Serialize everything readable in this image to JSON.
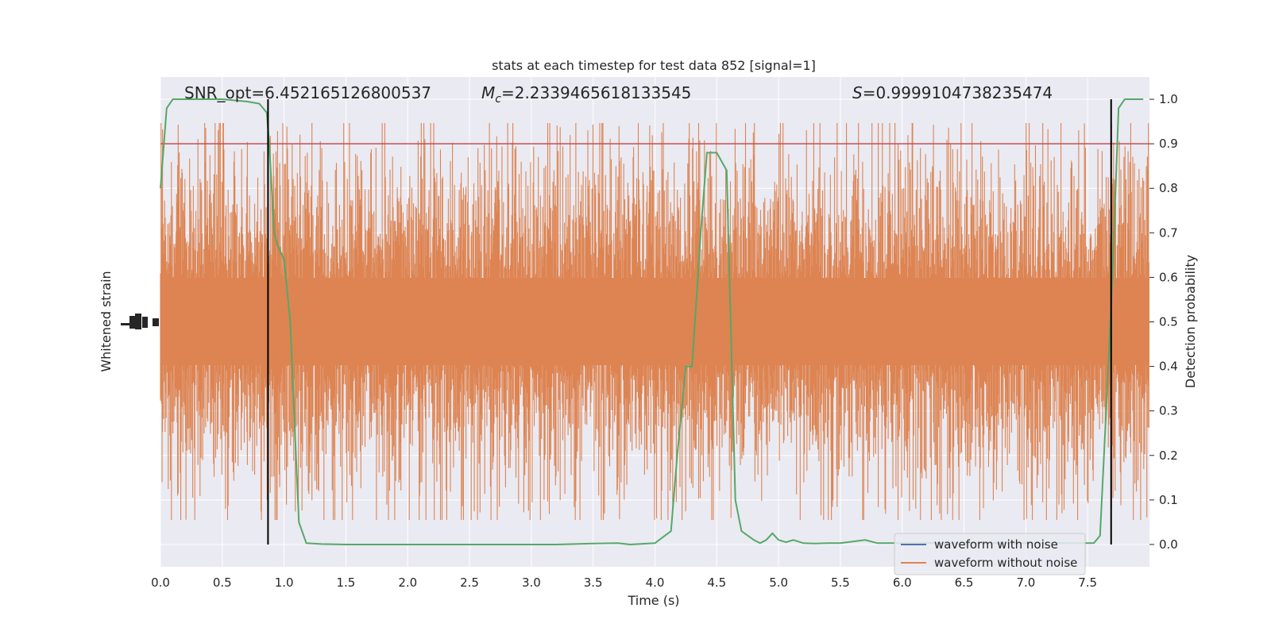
{
  "chart_data": {
    "type": "line",
    "title": "stats at each timestep for test data 852 [signal=1]",
    "xlabel": "Time (s)",
    "ylabel_left": "Whitened strain",
    "ylabel_right": "Detection probability",
    "xlim": [
      0.0,
      8.0
    ],
    "ylim_right": [
      -0.05,
      1.05
    ],
    "x_ticks": [
      "0.0",
      "0.5",
      "1.0",
      "1.5",
      "2.0",
      "2.5",
      "3.0",
      "3.5",
      "4.0",
      "4.5",
      "5.0",
      "5.5",
      "6.0",
      "6.5",
      "7.0",
      "7.5"
    ],
    "x_tick_values": [
      0.0,
      0.5,
      1.0,
      1.5,
      2.0,
      2.5,
      3.0,
      3.5,
      4.0,
      4.5,
      5.0,
      5.5,
      6.0,
      6.5,
      7.0,
      7.5
    ],
    "right_ticks": [
      "0.0",
      "0.1",
      "0.2",
      "0.3",
      "0.4",
      "0.5",
      "0.6",
      "0.7",
      "0.8",
      "0.9",
      "1.0"
    ],
    "right_tick_values": [
      0.0,
      0.1,
      0.2,
      0.3,
      0.4,
      0.5,
      0.6,
      0.7,
      0.8,
      0.9,
      1.0
    ],
    "annotations": {
      "snr": "SNR_opt=6.452165126800537",
      "mc_symbol": "M",
      "mc_sub": "c",
      "mc_value": "=2.2339465618133545",
      "s_symbol": "S",
      "s_value": "=0.9999104738235474"
    },
    "threshold": {
      "value": 0.9,
      "color": "#c44e52"
    },
    "vertical_lines": [
      0.87,
      7.69
    ],
    "series": [
      {
        "name": "waveform with noise",
        "color": "#4c72b0",
        "kind": "strain"
      },
      {
        "name": "waveform without noise",
        "color": "#dd8452",
        "kind": "strain"
      },
      {
        "name": "detection probability",
        "color": "#55a868",
        "kind": "probability",
        "x": [
          0.0,
          0.05,
          0.1,
          0.15,
          0.3,
          0.5,
          0.7,
          0.8,
          0.86,
          0.88,
          0.92,
          0.95,
          1.0,
          1.05,
          1.08,
          1.12,
          1.18,
          1.3,
          1.5,
          2.0,
          2.5,
          3.0,
          3.05,
          3.2,
          3.5,
          3.7,
          3.8,
          4.0,
          4.13,
          4.18,
          4.25,
          4.3,
          4.37,
          4.42,
          4.5,
          4.58,
          4.65,
          4.7,
          4.8,
          4.85,
          4.9,
          4.95,
          5.0,
          5.06,
          5.12,
          5.2,
          5.3,
          5.4,
          5.5,
          5.7,
          5.8,
          6.0,
          6.2,
          6.5,
          7.0,
          7.4,
          7.55,
          7.6,
          7.65,
          7.7,
          7.75,
          7.8,
          7.85,
          7.95
        ],
        "y": [
          0.8,
          0.98,
          1.0,
          1.0,
          1.0,
          1.0,
          0.995,
          0.99,
          0.97,
          0.9,
          0.7,
          0.67,
          0.64,
          0.5,
          0.3,
          0.05,
          0.003,
          0.001,
          0.0,
          0.0,
          0.0,
          0.0,
          0.0,
          0.0,
          0.002,
          0.003,
          0.0,
          0.003,
          0.03,
          0.2,
          0.4,
          0.4,
          0.7,
          0.88,
          0.88,
          0.84,
          0.1,
          0.03,
          0.01,
          0.003,
          0.01,
          0.025,
          0.01,
          0.005,
          0.01,
          0.003,
          0.002,
          0.003,
          0.003,
          0.01,
          0.003,
          0.003,
          0.003,
          0.003,
          0.003,
          0.003,
          0.003,
          0.02,
          0.3,
          0.6,
          0.98,
          1.0,
          1.0,
          1.0
        ]
      }
    ],
    "legend": [
      "waveform with noise",
      "waveform without noise"
    ],
    "legend_position": "lower-right",
    "grid": true
  }
}
